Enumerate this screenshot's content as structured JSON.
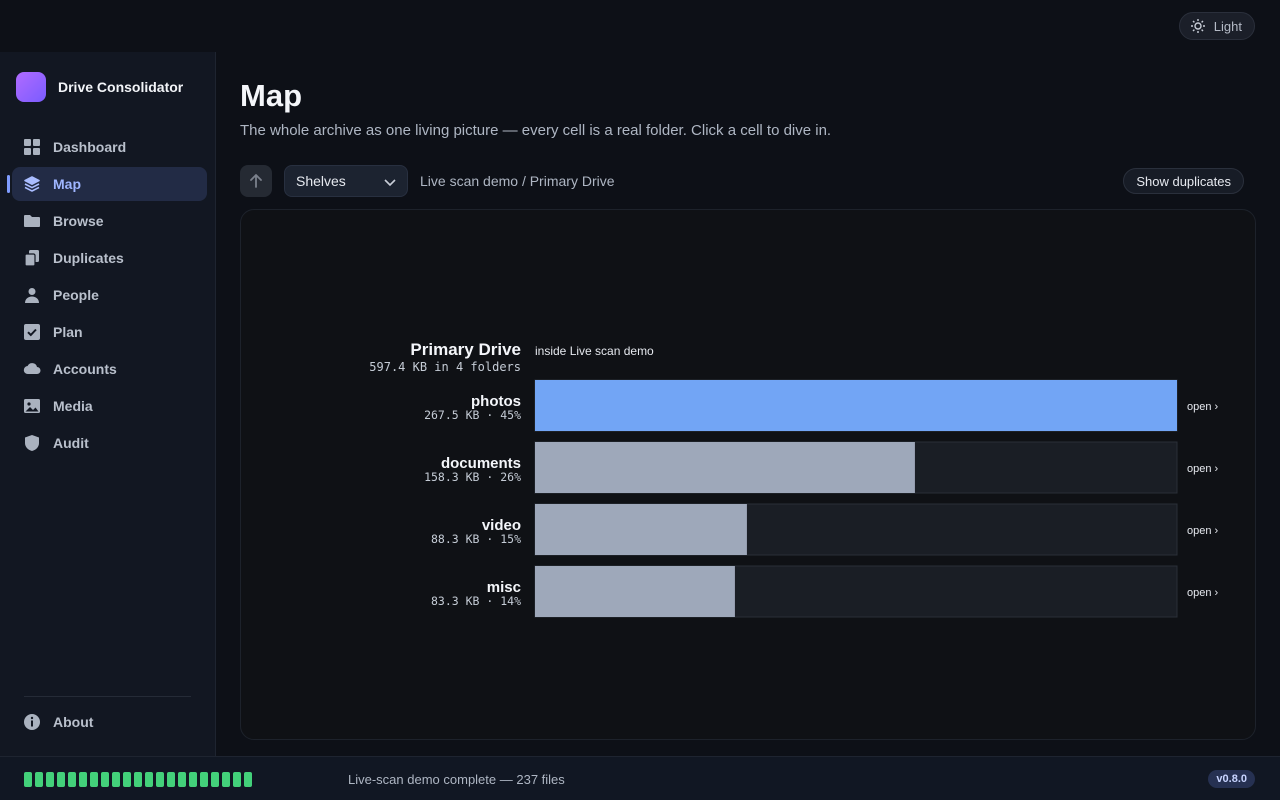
{
  "theme_toggle": {
    "label": "Light",
    "icon": "sun-icon"
  },
  "app": {
    "name": "Drive Consolidator"
  },
  "sidebar": {
    "items": [
      {
        "label": "Dashboard",
        "icon": "dashboard-icon",
        "active": false
      },
      {
        "label": "Map",
        "icon": "layers-icon",
        "active": true
      },
      {
        "label": "Browse",
        "icon": "folder-icon",
        "active": false
      },
      {
        "label": "Duplicates",
        "icon": "duplicates-icon",
        "active": false
      },
      {
        "label": "People",
        "icon": "person-icon",
        "active": false
      },
      {
        "label": "Plan",
        "icon": "checkbox-icon",
        "active": false
      },
      {
        "label": "Accounts",
        "icon": "cloud-icon",
        "active": false
      },
      {
        "label": "Media",
        "icon": "image-icon",
        "active": false
      },
      {
        "label": "Audit",
        "icon": "shield-icon",
        "active": false
      }
    ],
    "about": {
      "label": "About",
      "icon": "info-icon"
    }
  },
  "page": {
    "title": "Map",
    "subtitle": "The whole archive as one living picture — every cell is a real folder. Click a cell to dive in."
  },
  "toolbar": {
    "view_select": "Shelves",
    "breadcrumb": "Live scan demo / Primary Drive",
    "duplicates_button": "Show duplicates"
  },
  "chart_data": {
    "type": "bar",
    "orientation": "horizontal",
    "title": "Primary Drive",
    "subtitle": "597.4 KB in 4 folders",
    "context_label": "inside Live scan demo",
    "categories": [
      "photos",
      "documents",
      "video",
      "misc"
    ],
    "values": [
      267.5,
      158.3,
      88.3,
      83.3
    ],
    "value_labels": [
      "267.5 KB · 45%",
      "158.3 KB · 26%",
      "88.3 KB · 15%",
      "83.3 KB · 14%"
    ],
    "xlim": [
      0,
      267.5
    ],
    "unit": "KB",
    "bar_colors": [
      "#72a5f5",
      "#9ea8ba",
      "#9ea8ba",
      "#9ea8ba"
    ],
    "track_color": "#1a1e25",
    "open_label": "open ›"
  },
  "status": {
    "progress": 1.0,
    "text": "Live-scan demo complete — 237 files",
    "version": "v0.8.0",
    "accent": "#43d17a"
  }
}
